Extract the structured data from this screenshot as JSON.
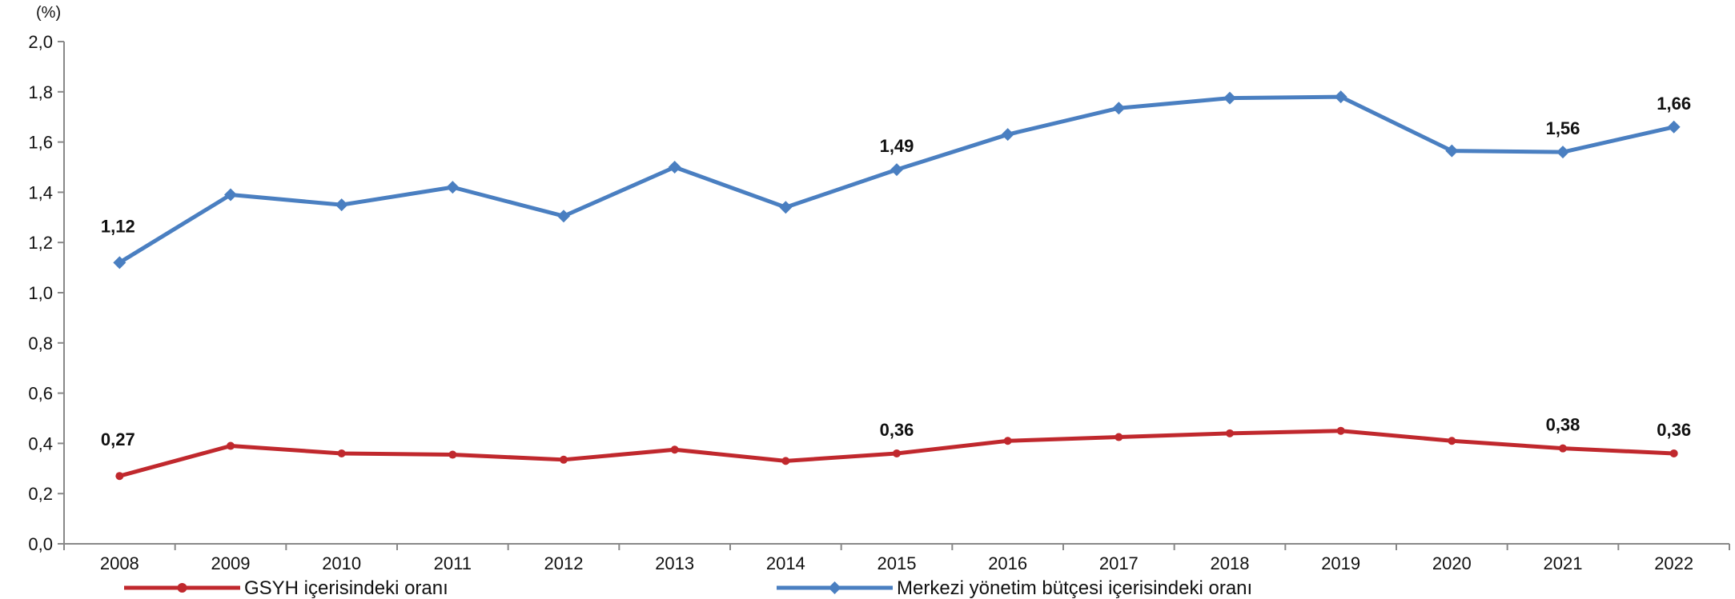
{
  "chart_data": {
    "type": "line",
    "unit_label": "(%)",
    "categories": [
      "2008",
      "2009",
      "2010",
      "2011",
      "2012",
      "2013",
      "2014",
      "2015",
      "2016",
      "2017",
      "2018",
      "2019",
      "2020",
      "2021",
      "2022"
    ],
    "ylim": [
      0,
      2.0
    ],
    "yticks": [
      "0,0",
      "0,2",
      "0,4",
      "0,6",
      "0,8",
      "1,0",
      "1,2",
      "1,4",
      "1,6",
      "1,8",
      "2,0"
    ],
    "grid": false,
    "legend_position": "bottom",
    "series": [
      {
        "name": "GSYH içerisindeki oranı",
        "color": "#c0282d",
        "marker": "circle",
        "values": [
          0.27,
          0.39,
          0.36,
          0.355,
          0.335,
          0.375,
          0.33,
          0.36,
          0.41,
          0.425,
          0.44,
          0.45,
          0.41,
          0.38,
          0.36
        ],
        "data_labels": {
          "0": "0,27",
          "7": "0,36",
          "13": "0,38",
          "14": "0,36"
        }
      },
      {
        "name": "Merkezi yönetim bütçesi içerisindeki oranı",
        "color": "#4a7fc1",
        "marker": "diamond",
        "values": [
          1.12,
          1.39,
          1.35,
          1.42,
          1.305,
          1.5,
          1.34,
          1.49,
          1.63,
          1.735,
          1.775,
          1.78,
          1.565,
          1.56,
          1.66
        ],
        "data_labels": {
          "0": "1,12",
          "7": "1,49",
          "13": "1,56",
          "14": "1,66"
        }
      }
    ]
  }
}
